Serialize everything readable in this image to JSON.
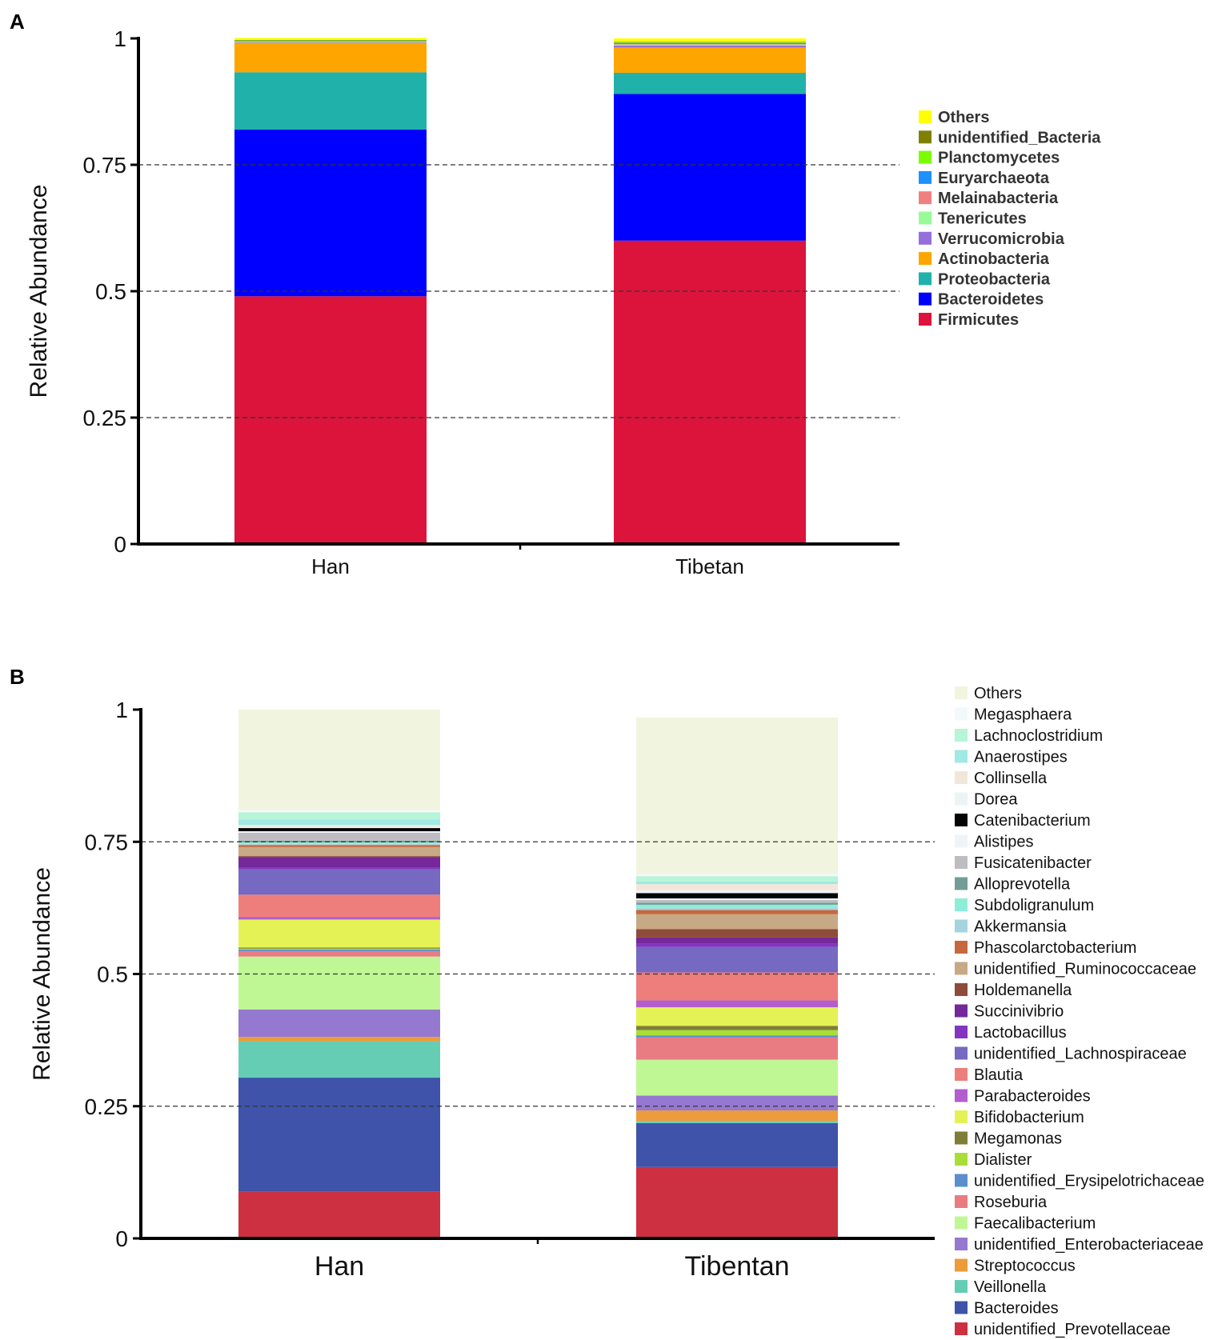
{
  "chart_data": [
    {
      "panel_label": "A",
      "type": "bar",
      "stacked": true,
      "categories": [
        "Han",
        "Tibetan"
      ],
      "ylabel": "Relative Abundance",
      "xlabel": "",
      "ylim": [
        0,
        1
      ],
      "yticks": [
        0,
        0.25,
        0.5,
        0.75,
        1
      ],
      "ytick_labels": [
        "0",
        "0.25",
        "0.5",
        "0.75",
        "1"
      ],
      "grid": "dashed horizontal at 0.25, 0.5, 0.75",
      "legend_placement": "right",
      "series": [
        {
          "name": "Firmicutes",
          "color": "#DC143C",
          "values": [
            0.49,
            0.6
          ]
        },
        {
          "name": "Bacteroidetes",
          "color": "#0000FF",
          "values": [
            0.33,
            0.29
          ]
        },
        {
          "name": "Proteobacteria",
          "color": "#20B2AA",
          "values": [
            0.113,
            0.042
          ]
        },
        {
          "name": "Actinobacteria",
          "color": "#FFA500",
          "values": [
            0.058,
            0.05
          ]
        },
        {
          "name": "Verrucomicrobia",
          "color": "#9370DB",
          "values": [
            0.001,
            0.004
          ]
        },
        {
          "name": "Tenericutes",
          "color": "#98FB98",
          "values": [
            0.001,
            0.002
          ]
        },
        {
          "name": "Melainabacteria",
          "color": "#F08080",
          "values": [
            0.001,
            0.001
          ]
        },
        {
          "name": "Euryarchaeota",
          "color": "#1E90FF",
          "values": [
            0.001,
            0.002
          ]
        },
        {
          "name": "Planctomycetes",
          "color": "#7CFC00",
          "values": [
            0.001,
            0.001
          ]
        },
        {
          "name": "unidentified_Bacteria",
          "color": "#808000",
          "values": [
            0.001,
            0.001
          ]
        },
        {
          "name": "Others",
          "color": "#FFFF00",
          "values": [
            0.004,
            0.007
          ]
        }
      ]
    },
    {
      "panel_label": "B",
      "type": "bar",
      "stacked": true,
      "categories": [
        "Han",
        "Tibentan"
      ],
      "ylabel": "Relative Abundance",
      "xlabel": "",
      "ylim": [
        0,
        1
      ],
      "yticks": [
        0,
        0.25,
        0.5,
        0.75,
        1
      ],
      "ytick_labels": [
        "0",
        "0.25",
        "0.5",
        "0.75",
        "1"
      ],
      "grid": "dashed horizontal at 0.25, 0.5, 0.75",
      "legend_placement": "right",
      "series": [
        {
          "name": "unidentified_Prevotellaceae",
          "color": "#CD3041",
          "values": [
            0.088,
            0.135
          ]
        },
        {
          "name": "Bacteroides",
          "color": "#3E53A9",
          "values": [
            0.216,
            0.083
          ]
        },
        {
          "name": "Veillonella",
          "color": "#66CDB5",
          "values": [
            0.069,
            0.004
          ]
        },
        {
          "name": "Streptococcus",
          "color": "#EC9C3A",
          "values": [
            0.008,
            0.02
          ]
        },
        {
          "name": "unidentified_Enterobacteriaceae",
          "color": "#9578CF",
          "values": [
            0.052,
            0.028
          ]
        },
        {
          "name": "Faecalibacterium",
          "color": "#C0F795",
          "values": [
            0.1,
            0.068
          ]
        },
        {
          "name": "Roseburia",
          "color": "#E87C82",
          "values": [
            0.01,
            0.042
          ]
        },
        {
          "name": "unidentified_Erysipelotrichaceae",
          "color": "#5B8FCB",
          "values": [
            0.003,
            0.004
          ]
        },
        {
          "name": "Dialister",
          "color": "#A9DE38",
          "values": [
            0.002,
            0.01
          ]
        },
        {
          "name": "Megamonas",
          "color": "#7E7E35",
          "values": [
            0.002,
            0.008
          ]
        },
        {
          "name": "Bifidobacterium",
          "color": "#E5F256",
          "values": [
            0.053,
            0.035
          ]
        },
        {
          "name": "Parabacteroides",
          "color": "#B25ECE",
          "values": [
            0.005,
            0.013
          ]
        },
        {
          "name": "Blautia",
          "color": "#EE7E7B",
          "values": [
            0.042,
            0.053
          ]
        },
        {
          "name": "unidentified_Lachnospiraceae",
          "color": "#7569C1",
          "values": [
            0.048,
            0.048
          ]
        },
        {
          "name": "Lactobacillus",
          "color": "#8236BF",
          "values": [
            0.003,
            0.006
          ]
        },
        {
          "name": "Succinivibrio",
          "color": "#74289A",
          "values": [
            0.02,
            0.012
          ]
        },
        {
          "name": "Holdemanella",
          "color": "#8E4B3A",
          "values": [
            0.002,
            0.016
          ]
        },
        {
          "name": "unidentified_Ruminococcaceae",
          "color": "#C8A985",
          "values": [
            0.017,
            0.028
          ]
        },
        {
          "name": "Phascolarctobacterium",
          "color": "#C6683D",
          "values": [
            0.004,
            0.008
          ]
        },
        {
          "name": "Akkermansia",
          "color": "#A6D3E0",
          "values": [
            0.002,
            0.004
          ]
        },
        {
          "name": "Subdoligranulum",
          "color": "#8CEED7",
          "values": [
            0.003,
            0.006
          ]
        },
        {
          "name": "Alloprevotella",
          "color": "#729D97",
          "values": [
            0.003,
            0.004
          ]
        },
        {
          "name": "Fusicatenibacter",
          "color": "#BDBDC1",
          "values": [
            0.015,
            0.005
          ]
        },
        {
          "name": "Alistipes",
          "color": "#EFF4F8",
          "values": [
            0.003,
            0.003
          ]
        },
        {
          "name": "Catenibacterium",
          "color": "#050505",
          "values": [
            0.006,
            0.01
          ]
        },
        {
          "name": "Dorea",
          "color": "#EEF3F6",
          "values": [
            0.003,
            0.005
          ]
        },
        {
          "name": "Collinsella",
          "color": "#F2E6DA",
          "values": [
            0.003,
            0.012
          ]
        },
        {
          "name": "Anaerostipes",
          "color": "#A0E9E4",
          "values": [
            0.01,
            0.005
          ]
        },
        {
          "name": "Lachnoclostridium",
          "color": "#B7F4D8",
          "values": [
            0.014,
            0.01
          ]
        },
        {
          "name": "Megasphaera",
          "color": "#F1F9FA",
          "values": [
            0.004,
            0.004
          ]
        },
        {
          "name": "Others",
          "color": "#F1F5DF",
          "values": [
            0.19,
            0.296
          ]
        }
      ]
    }
  ]
}
